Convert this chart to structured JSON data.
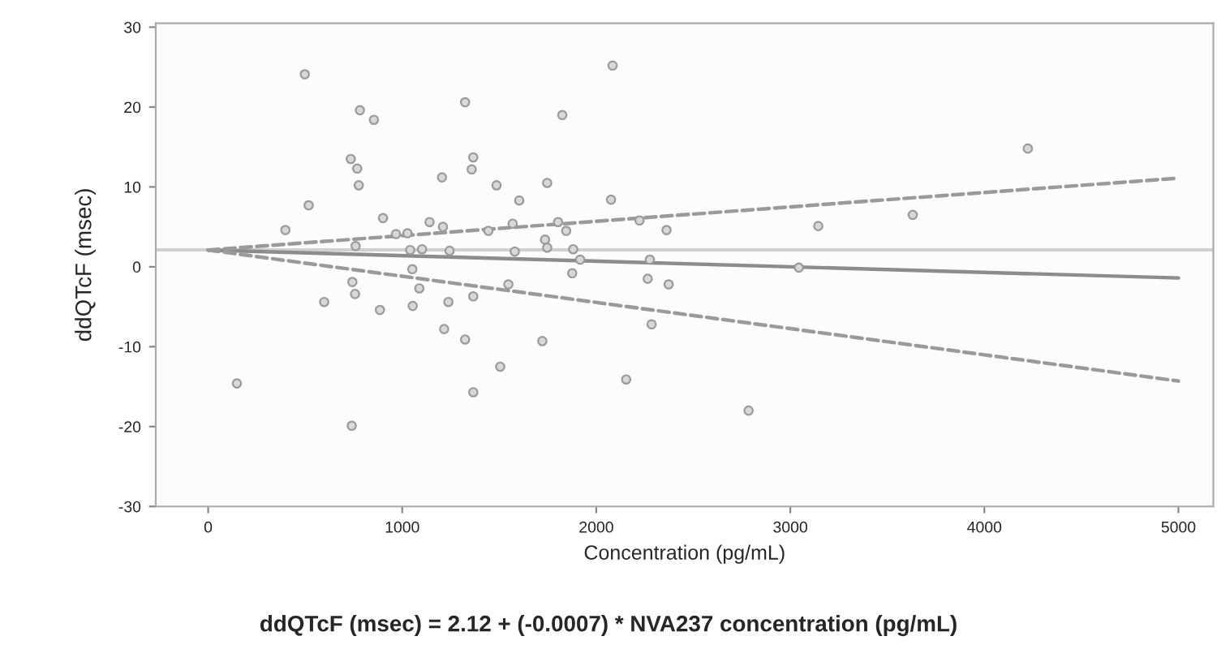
{
  "chart_data": {
    "type": "scatter",
    "xlabel": "Concentration (pg/mL)",
    "ylabel": "ddQTcF (msec)",
    "annotations": [
      "ddQTcF (msec) = 2.12 + (-0.0007) * NVA237 concentration (pg/mL)"
    ],
    "xlim": [
      -270,
      5180
    ],
    "ylim": [
      -30,
      30.5
    ],
    "xticks": [
      0,
      1000,
      2000,
      3000,
      4000,
      5000
    ],
    "yticks": [
      -30,
      -20,
      -10,
      0,
      10,
      20,
      30
    ],
    "grid": false,
    "legend": false,
    "ref_lines": [
      {
        "axis": "y",
        "value": 2.12,
        "color": "#d0d0d0",
        "line_style": "solid"
      }
    ],
    "series": [
      {
        "color": "#9a9a9a",
        "marker": "circle",
        "x": [
          498,
          518,
          398,
          148,
          598,
          735,
          768,
          776,
          782,
          854,
          760,
          743,
          757,
          740,
          901,
          885,
          968,
          1027,
          1041,
          1052,
          1054,
          1088,
          1102,
          1141,
          1205,
          1210,
          1216,
          1238,
          1244,
          1324,
          1324,
          1358,
          1366,
          1366,
          1366,
          1444,
          1486,
          1505,
          1547,
          1580,
          1569,
          1603,
          1722,
          1736,
          1747,
          1747,
          1803,
          1825,
          1845,
          1881,
          1876,
          1917,
          2084,
          2076,
          2154,
          2265,
          2223,
          2276,
          2362,
          2373,
          2285,
          2785,
          3044,
          3144,
          3631,
          4224
        ],
        "values": [
          24.1,
          7.7,
          4.6,
          -14.6,
          -4.4,
          13.5,
          12.3,
          10.2,
          19.6,
          18.4,
          2.6,
          -1.9,
          -3.4,
          -19.9,
          6.1,
          -5.4,
          4.1,
          4.2,
          2.1,
          -0.3,
          -4.9,
          -2.7,
          2.2,
          5.6,
          11.2,
          5.0,
          -7.8,
          -4.4,
          2.0,
          20.6,
          -9.1,
          12.2,
          13.7,
          -3.7,
          -15.7,
          4.5,
          10.2,
          -12.5,
          -2.2,
          1.9,
          5.4,
          8.3,
          -9.3,
          3.4,
          2.4,
          10.5,
          5.6,
          19.0,
          4.5,
          2.2,
          -0.8,
          0.9,
          25.2,
          8.4,
          -14.1,
          -1.5,
          5.8,
          0.9,
          4.6,
          -2.2,
          -7.2,
          -18.0,
          -0.1,
          5.1,
          6.5,
          14.8
        ]
      },
      {
        "type": "line",
        "color": "#8c8c8c",
        "line_style": "solid",
        "x": [
          0,
          5000
        ],
        "values": [
          2.1,
          -1.4
        ]
      },
      {
        "type": "line",
        "color": "#9a9a9a",
        "line_style": "dashed",
        "x": [
          0,
          5000
        ],
        "values": [
          2.1,
          11.1
        ]
      },
      {
        "type": "line",
        "color": "#9a9a9a",
        "line_style": "dashed",
        "x": [
          0,
          5000
        ],
        "values": [
          2.1,
          -14.3
        ]
      }
    ]
  }
}
